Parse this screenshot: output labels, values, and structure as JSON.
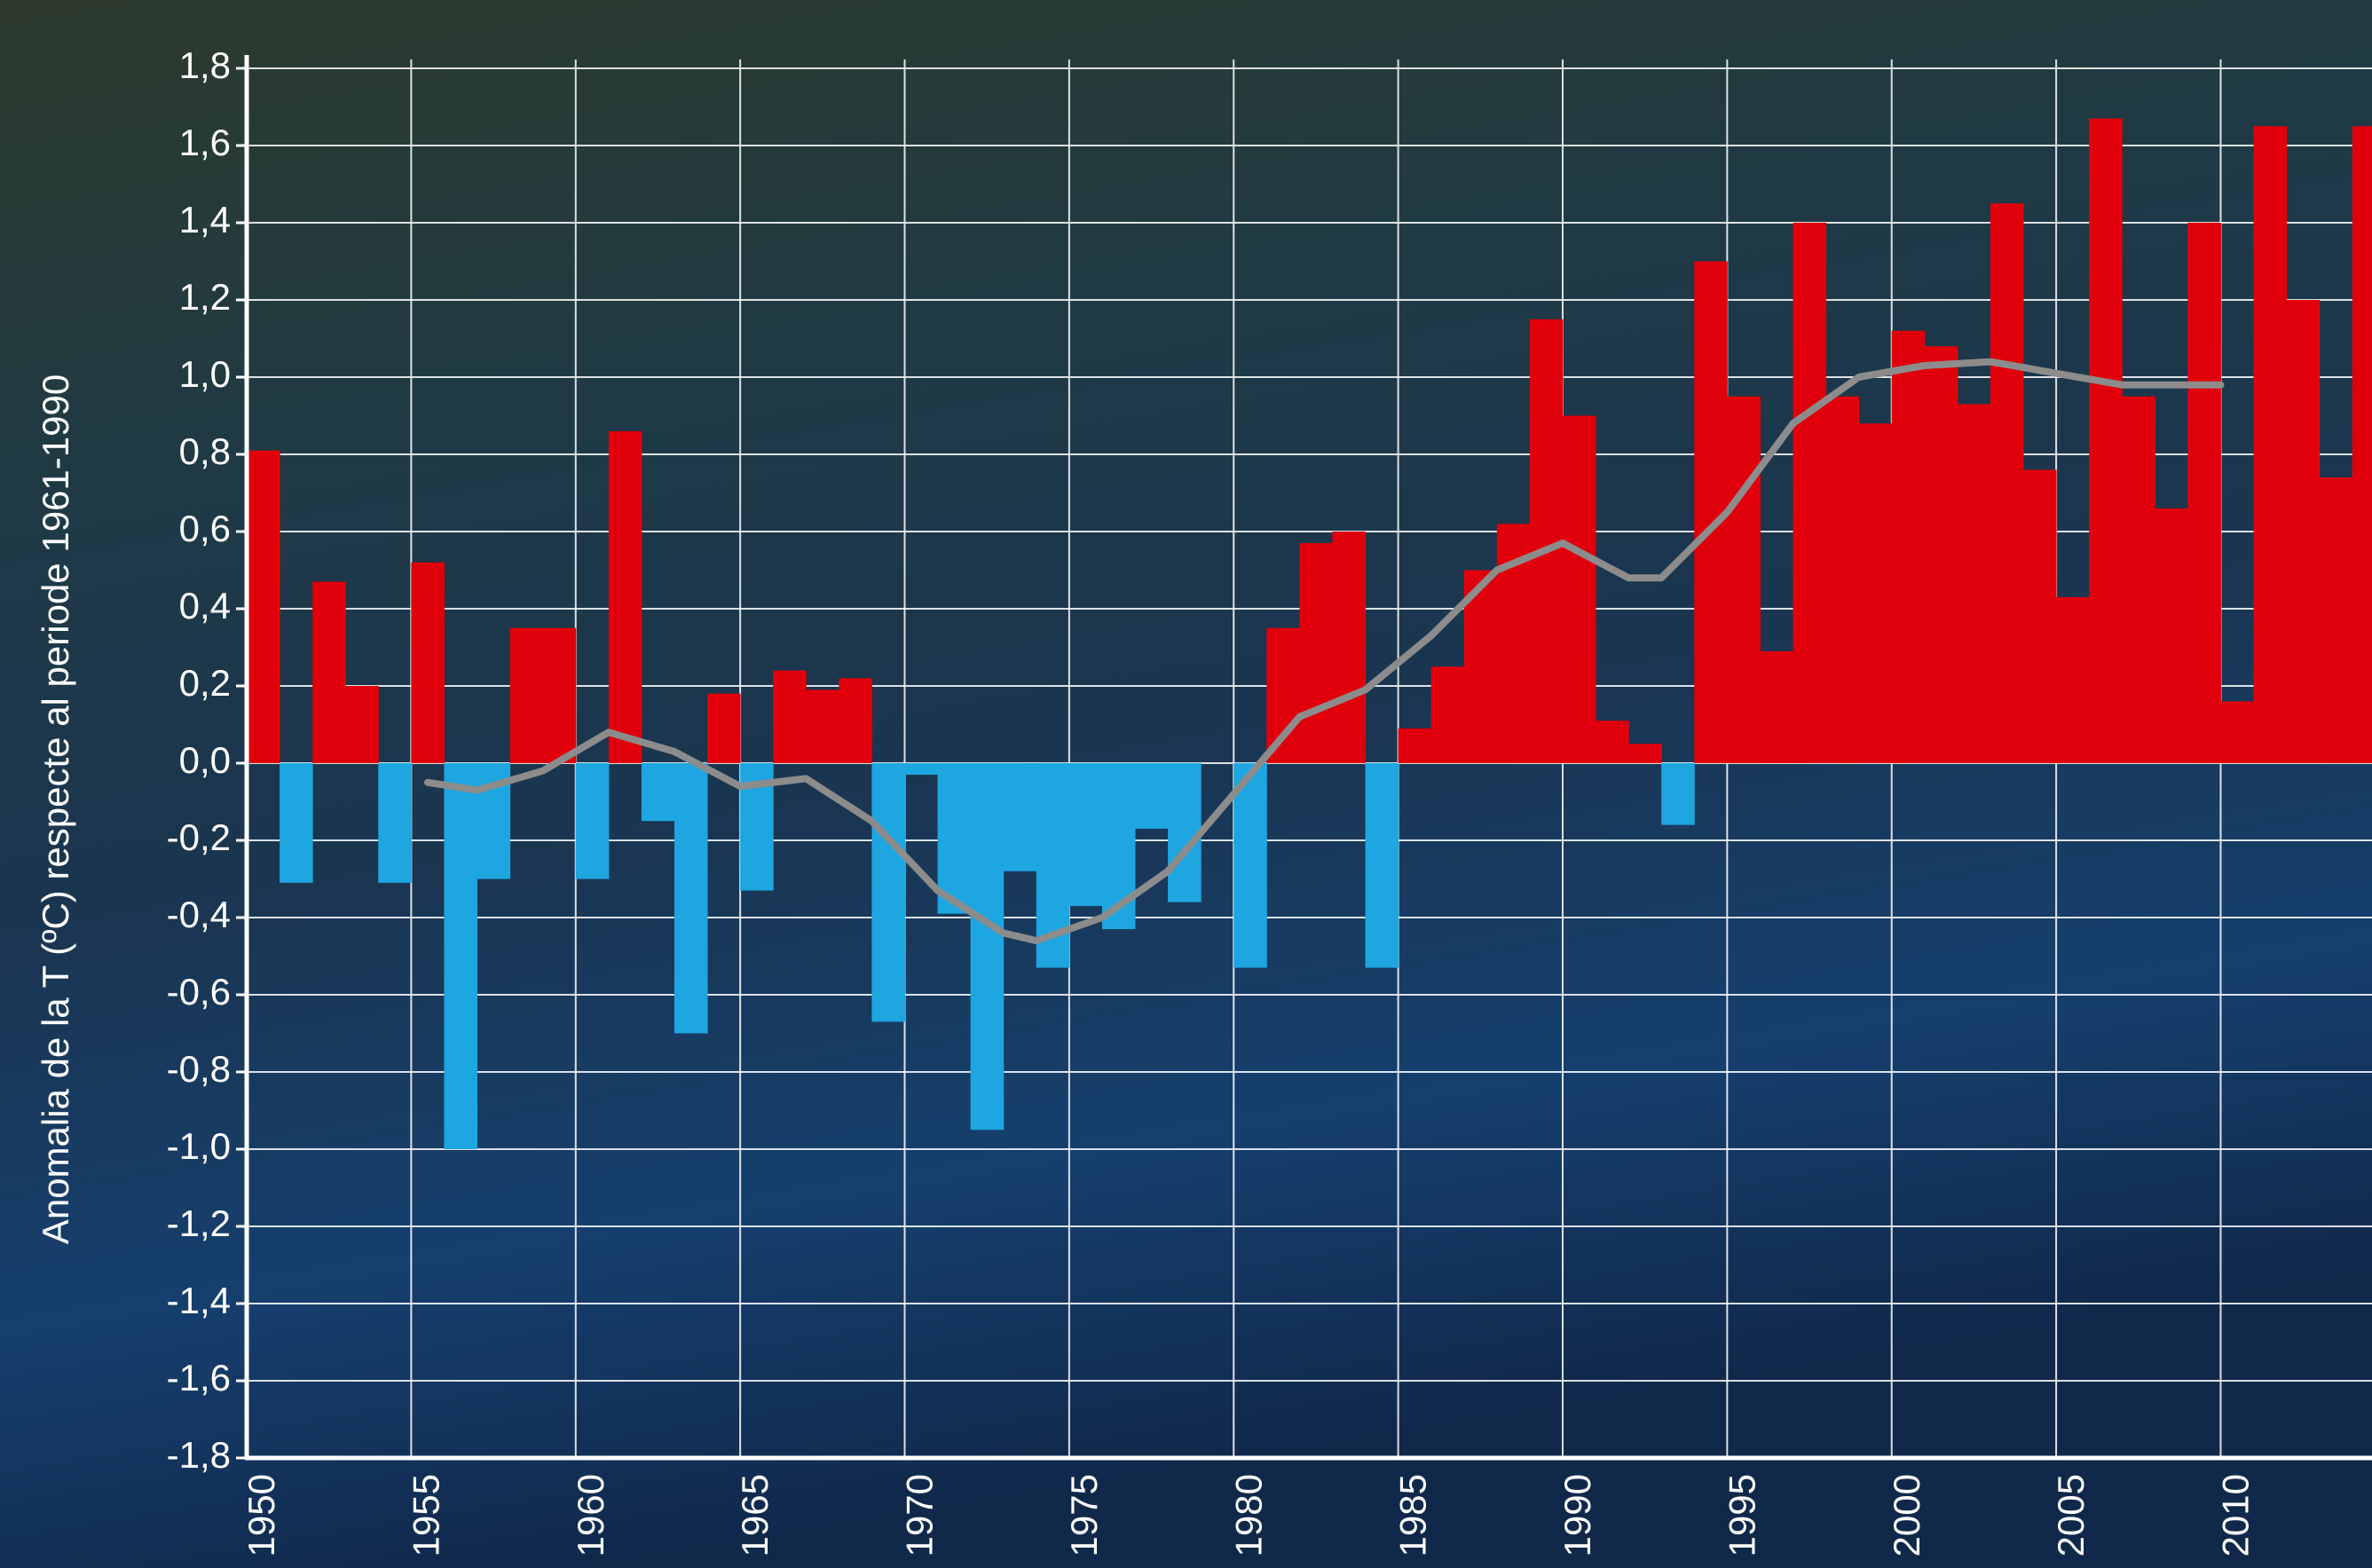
{
  "chart_data": {
    "type": "bar",
    "y_label": "Anomalia de la T (ºC) respecte al periode 1961-1990",
    "x": [
      1950,
      1951,
      1952,
      1953,
      1954,
      1955,
      1956,
      1957,
      1958,
      1959,
      1960,
      1961,
      1962,
      1963,
      1964,
      1965,
      1966,
      1967,
      1968,
      1969,
      1970,
      1971,
      1972,
      1973,
      1974,
      1975,
      1976,
      1977,
      1978,
      1979,
      1980,
      1981,
      1982,
      1983,
      1984,
      1985,
      1986,
      1987,
      1988,
      1989,
      1990,
      1991,
      1992,
      1993,
      1994,
      1995,
      1996,
      1997,
      1998,
      1999,
      2000,
      2001,
      2002,
      2003,
      2004,
      2005,
      2006,
      2007,
      2008,
      2009,
      2010,
      2011,
      2012,
      2013,
      2014
    ],
    "values": [
      0.81,
      -0.31,
      0.47,
      0.2,
      -0.31,
      0.52,
      -1.0,
      -0.3,
      0.35,
      0.35,
      -0.3,
      0.86,
      -0.15,
      -0.7,
      0.18,
      -0.33,
      0.24,
      0.19,
      0.22,
      -0.67,
      -0.03,
      -0.39,
      -0.95,
      -0.28,
      -0.53,
      -0.37,
      -0.43,
      -0.17,
      -0.36,
      0,
      -0.53,
      0.35,
      0.57,
      0.6,
      -0.53,
      0.09,
      0.25,
      0.5,
      0.62,
      1.15,
      0.9,
      0.11,
      0.05,
      -0.16,
      1.3,
      0.95,
      0.29,
      1.4,
      0.95,
      0.88,
      1.12,
      1.08,
      0.93,
      1.45,
      0.76,
      0.43,
      1.67,
      0.95,
      0.66,
      1.4,
      0.16,
      1.65,
      1.2,
      0.74,
      1.65
    ],
    "color_positive": "#e0000b",
    "color_negative": "#1ea6e0",
    "trend": {
      "type": "line",
      "color": "#8c8c8c",
      "x": [
        1955.5,
        1957,
        1959,
        1961,
        1963,
        1965,
        1967,
        1969,
        1971,
        1973,
        1974,
        1976,
        1978,
        1980,
        1982,
        1984,
        1986,
        1988,
        1990,
        1992,
        1993,
        1995,
        1997,
        1999,
        2001,
        2003,
        2005,
        2007,
        2010
      ],
      "values": [
        -0.05,
        -0.07,
        -0.02,
        0.08,
        0.03,
        -0.06,
        -0.04,
        -0.15,
        -0.33,
        -0.44,
        -0.46,
        -0.4,
        -0.28,
        -0.08,
        0.12,
        0.19,
        0.33,
        0.5,
        0.57,
        0.48,
        0.48,
        0.65,
        0.88,
        1.0,
        1.03,
        1.04,
        1.01,
        0.98,
        0.98
      ]
    },
    "xlim": [
      1950,
      2014.6
    ],
    "xticks": [
      1950,
      1955,
      1960,
      1965,
      1970,
      1975,
      1980,
      1985,
      1990,
      1995,
      2000,
      2005,
      2010
    ],
    "ylim": [
      -1.8,
      1.8
    ],
    "yticks": [
      {
        "value": -1.8,
        "label": "-1,8"
      },
      {
        "value": -1.6,
        "label": "-1,6"
      },
      {
        "value": -1.4,
        "label": "-1,4"
      },
      {
        "value": -1.2,
        "label": "-1,2"
      },
      {
        "value": -1.0,
        "label": "-1,0"
      },
      {
        "value": -0.8,
        "label": "-0,8"
      },
      {
        "value": -0.6,
        "label": "-0,6"
      },
      {
        "value": -0.4,
        "label": "-0,4"
      },
      {
        "value": -0.2,
        "label": "-0,2"
      },
      {
        "value": 0,
        "label": "0,0"
      },
      {
        "value": 0.2,
        "label": "0,2"
      },
      {
        "value": 0.4,
        "label": "0,4"
      },
      {
        "value": 0.6,
        "label": "0,6"
      },
      {
        "value": 0.8,
        "label": "0,8"
      },
      {
        "value": 1.0,
        "label": "1,0"
      },
      {
        "value": 1.2,
        "label": "1,2"
      },
      {
        "value": 1.4,
        "label": "1,4"
      },
      {
        "value": 1.6,
        "label": "1,6"
      },
      {
        "value": 1.8,
        "label": "1,8"
      }
    ],
    "grid": true
  }
}
